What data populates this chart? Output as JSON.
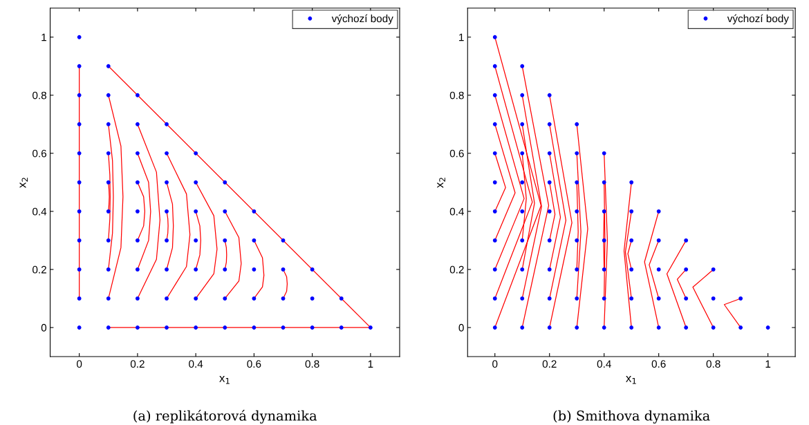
{
  "chart_data": [
    {
      "type": "line",
      "title": "(a) replikátorová dynamika",
      "xlabel": "x$_{1}$",
      "ylabel": "x$_{2}$",
      "xlim": [
        -0.1,
        1.1
      ],
      "ylim": [
        -0.1,
        1.1
      ],
      "xticks": [
        0,
        0.2,
        0.4,
        0.6,
        0.8,
        1
      ],
      "yticks": [
        0,
        0.2,
        0.4,
        0.6,
        0.8,
        1
      ],
      "grid": false,
      "legend": "top right",
      "series": [
        {
          "type": "scatter",
          "name": "výchozí body",
          "color": "#0000ff",
          "marker": "circle",
          "x": [
            0,
            0,
            0,
            0,
            0,
            0,
            0,
            0,
            0,
            0,
            0,
            0.1,
            0.1,
            0.1,
            0.1,
            0.1,
            0.1,
            0.1,
            0.1,
            0.1,
            0.1,
            0.2,
            0.2,
            0.2,
            0.2,
            0.2,
            0.2,
            0.2,
            0.2,
            0.2,
            0.3,
            0.3,
            0.3,
            0.3,
            0.3,
            0.3,
            0.3,
            0.3,
            0.4,
            0.4,
            0.4,
            0.4,
            0.4,
            0.4,
            0.4,
            0.5,
            0.5,
            0.5,
            0.5,
            0.5,
            0.5,
            0.6,
            0.6,
            0.6,
            0.6,
            0.6,
            0.7,
            0.7,
            0.7,
            0.7,
            0.8,
            0.8,
            0.8,
            0.9,
            0.9,
            1
          ],
          "values": [
            0,
            0.1,
            0.2,
            0.3,
            0.4,
            0.5,
            0.6,
            0.7,
            0.8,
            0.9,
            1,
            0,
            0.1,
            0.2,
            0.3,
            0.4,
            0.5,
            0.6,
            0.7,
            0.8,
            0.9,
            0,
            0.1,
            0.2,
            0.3,
            0.4,
            0.5,
            0.6,
            0.7,
            0.8,
            0,
            0.1,
            0.2,
            0.3,
            0.4,
            0.5,
            0.6,
            0.7,
            0,
            0.1,
            0.2,
            0.3,
            0.4,
            0.5,
            0.6,
            0,
            0.1,
            0.2,
            0.3,
            0.4,
            0.5,
            0,
            0.1,
            0.2,
            0.3,
            0.4,
            0,
            0.1,
            0.2,
            0.3,
            0,
            0.1,
            0.2,
            0,
            0.1,
            0
          ]
        },
        {
          "type": "line",
          "color": "#ff0000",
          "x": [
            0,
            0
          ],
          "values": [
            0.9,
            0.1
          ]
        },
        {
          "type": "line",
          "color": "#ff0000",
          "x": [
            0.1,
            1
          ],
          "values": [
            0.9,
            0
          ]
        },
        {
          "type": "line",
          "color": "#ff0000",
          "x": [
            0.1,
            1
          ],
          "values": [
            0,
            0
          ]
        },
        {
          "type": "line",
          "color": "#ff0000",
          "x": [
            0.1,
            0.143,
            0.15,
            0.143,
            0.1
          ],
          "values": [
            0.8,
            0.625,
            0.45,
            0.275,
            0.1
          ]
        },
        {
          "type": "line",
          "color": "#ff0000",
          "x": [
            0.1,
            0.114,
            0.117,
            0.114,
            0.1
          ],
          "values": [
            0.7,
            0.575,
            0.45,
            0.325,
            0.2
          ]
        },
        {
          "type": "line",
          "color": "#ff0000",
          "x": [
            0.1,
            0.105,
            0.106,
            0.105,
            0.1
          ],
          "values": [
            0.6,
            0.525,
            0.45,
            0.375,
            0.3
          ]
        },
        {
          "type": "line",
          "color": "#ff0000",
          "x": [
            0.1,
            0.102,
            0.103,
            0.102,
            0.1
          ],
          "values": [
            0.5,
            0.475,
            0.45,
            0.425,
            0.4
          ]
        },
        {
          "type": "line",
          "color": "#ff0000",
          "x": [
            0.2,
            0.265,
            0.277,
            0.265,
            0.2
          ],
          "values": [
            0.7,
            0.535,
            0.37,
            0.235,
            0.1
          ]
        },
        {
          "type": "line",
          "color": "#ff0000",
          "x": [
            0.2,
            0.238,
            0.245,
            0.238,
            0.2
          ],
          "values": [
            0.6,
            0.5,
            0.4,
            0.3,
            0.2
          ]
        },
        {
          "type": "line",
          "color": "#ff0000",
          "x": [
            0.2,
            0.221,
            0.225,
            0.221,
            0.2
          ],
          "values": [
            0.5,
            0.45,
            0.4,
            0.35,
            0.3
          ]
        },
        {
          "type": "line",
          "color": "#ff0000",
          "x": [
            0.3,
            0.368,
            0.38,
            0.368,
            0.3
          ],
          "values": [
            0.6,
            0.46,
            0.32,
            0.21,
            0.1
          ]
        },
        {
          "type": "line",
          "color": "#ff0000",
          "x": [
            0.3,
            0.32,
            0.323,
            0.32,
            0.3
          ],
          "values": [
            0.5,
            0.425,
            0.35,
            0.275,
            0.2
          ]
        },
        {
          "type": "line",
          "color": "#ff0000",
          "x": [
            0.3,
            0.304,
            0.305,
            0.304,
            0.3
          ],
          "values": [
            0.4,
            0.375,
            0.35,
            0.325,
            0.3
          ]
        },
        {
          "type": "line",
          "color": "#ff0000",
          "x": [
            0.4,
            0.462,
            0.473,
            0.462,
            0.4
          ],
          "values": [
            0.5,
            0.385,
            0.27,
            0.185,
            0.1
          ]
        },
        {
          "type": "line",
          "color": "#ff0000",
          "x": [
            0.4,
            0.414,
            0.417,
            0.414,
            0.4
          ],
          "values": [
            0.4,
            0.35,
            0.3,
            0.25,
            0.2
          ]
        },
        {
          "type": "line",
          "color": "#ff0000",
          "x": [
            0.5,
            0.548,
            0.556,
            0.548,
            0.5
          ],
          "values": [
            0.4,
            0.31,
            0.22,
            0.16,
            0.1
          ]
        },
        {
          "type": "line",
          "color": "#ff0000",
          "x": [
            0.5,
            0.505,
            0.506,
            0.505,
            0.5
          ],
          "values": [
            0.3,
            0.275,
            0.25,
            0.225,
            0.2
          ]
        },
        {
          "type": "line",
          "color": "#ff0000",
          "x": [
            0.6,
            0.629,
            0.634,
            0.629,
            0.6
          ],
          "values": [
            0.3,
            0.24,
            0.18,
            0.14,
            0.1
          ]
        },
        {
          "type": "line",
          "color": "#ff0000",
          "x": [
            0.7,
            0.712,
            0.714,
            0.712,
            0.7
          ],
          "values": [
            0.2,
            0.175,
            0.15,
            0.125,
            0.1
          ]
        }
      ]
    },
    {
      "type": "line",
      "title": "(b) Smithova dynamika",
      "xlabel": "x$_{1}$",
      "ylabel": "x$_{2}$",
      "xlim": [
        -0.1,
        1.1
      ],
      "ylim": [
        -0.1,
        1.1
      ],
      "xticks": [
        0,
        0.2,
        0.4,
        0.6,
        0.8,
        1
      ],
      "yticks": [
        0,
        0.2,
        0.4,
        0.6,
        0.8,
        1
      ],
      "grid": false,
      "legend": "top right",
      "series": [
        {
          "type": "scatter",
          "name": "výchozí body",
          "color": "#0000ff",
          "marker": "circle",
          "x": [
            0,
            0,
            0,
            0,
            0,
            0,
            0,
            0,
            0,
            0,
            0,
            0.1,
            0.1,
            0.1,
            0.1,
            0.1,
            0.1,
            0.1,
            0.1,
            0.1,
            0.1,
            0.2,
            0.2,
            0.2,
            0.2,
            0.2,
            0.2,
            0.2,
            0.2,
            0.2,
            0.3,
            0.3,
            0.3,
            0.3,
            0.3,
            0.3,
            0.3,
            0.3,
            0.4,
            0.4,
            0.4,
            0.4,
            0.4,
            0.4,
            0.4,
            0.5,
            0.5,
            0.5,
            0.5,
            0.5,
            0.5,
            0.6,
            0.6,
            0.6,
            0.6,
            0.6,
            0.7,
            0.7,
            0.7,
            0.7,
            0.8,
            0.8,
            0.8,
            0.9,
            0.9,
            1
          ],
          "values": [
            0,
            0.1,
            0.2,
            0.3,
            0.4,
            0.5,
            0.6,
            0.7,
            0.8,
            0.9,
            1,
            0,
            0.1,
            0.2,
            0.3,
            0.4,
            0.5,
            0.6,
            0.7,
            0.8,
            0.9,
            0,
            0.1,
            0.2,
            0.3,
            0.4,
            0.5,
            0.6,
            0.7,
            0.8,
            0,
            0.1,
            0.2,
            0.3,
            0.4,
            0.5,
            0.6,
            0.7,
            0,
            0.1,
            0.2,
            0.3,
            0.4,
            0.5,
            0.6,
            0,
            0.1,
            0.2,
            0.3,
            0.4,
            0.5,
            0,
            0.1,
            0.2,
            0.3,
            0.4,
            0,
            0.1,
            0.2,
            0.3,
            0,
            0.1,
            0.2,
            0,
            0.1,
            0
          ]
        },
        {
          "type": "line",
          "color": "#ff0000",
          "x": [
            0,
            0.169,
            0
          ],
          "values": [
            1,
            0.42,
            0
          ]
        },
        {
          "type": "line",
          "color": "#ff0000",
          "x": [
            0,
            0.137,
            0
          ],
          "values": [
            0.9,
            0.432,
            0.1
          ]
        },
        {
          "type": "line",
          "color": "#ff0000",
          "x": [
            0,
            0.107,
            0
          ],
          "values": [
            0.8,
            0.444,
            0.2
          ]
        },
        {
          "type": "line",
          "color": "#ff0000",
          "x": [
            0,
            0.074,
            0
          ],
          "values": [
            0.7,
            0.464,
            0.3
          ]
        },
        {
          "type": "line",
          "color": "#ff0000",
          "x": [
            0,
            0.039,
            0
          ],
          "values": [
            0.6,
            0.482,
            0.4
          ]
        },
        {
          "type": "line",
          "color": "#ff0000",
          "x": [
            0.1,
            0.197,
            0.1
          ],
          "values": [
            0.9,
            0.42,
            0
          ]
        },
        {
          "type": "line",
          "color": "#ff0000",
          "x": [
            0.1,
            0.171,
            0.1
          ],
          "values": [
            0.8,
            0.416,
            0.1
          ]
        },
        {
          "type": "line",
          "color": "#ff0000",
          "x": [
            0.1,
            0.145,
            0.1
          ],
          "values": [
            0.7,
            0.428,
            0.2
          ]
        },
        {
          "type": "line",
          "color": "#ff0000",
          "x": [
            0.1,
            0.115,
            0.1
          ],
          "values": [
            0.6,
            0.444,
            0.3
          ]
        },
        {
          "type": "line",
          "color": "#ff0000",
          "x": [
            0.2,
            0.282,
            0.2
          ],
          "values": [
            0.8,
            0.361,
            0
          ]
        },
        {
          "type": "line",
          "color": "#ff0000",
          "x": [
            0.2,
            0.26,
            0.2
          ],
          "values": [
            0.7,
            0.369,
            0.1
          ]
        },
        {
          "type": "line",
          "color": "#ff0000",
          "x": [
            0.2,
            0.24,
            0.2
          ],
          "values": [
            0.6,
            0.38,
            0.2
          ]
        },
        {
          "type": "line",
          "color": "#ff0000",
          "x": [
            0.2,
            0.22,
            0.2
          ],
          "values": [
            0.5,
            0.39,
            0.3
          ]
        },
        {
          "type": "line",
          "color": "#ff0000",
          "x": [
            0.3,
            0.34,
            0.3
          ],
          "values": [
            0.7,
            0.34,
            0
          ]
        },
        {
          "type": "line",
          "color": "#ff0000",
          "x": [
            0.3,
            0.315,
            0.3
          ],
          "values": [
            0.6,
            0.33,
            0.1
          ]
        },
        {
          "type": "line",
          "color": "#ff0000",
          "x": [
            0.3,
            0.305,
            0.3
          ],
          "values": [
            0.5,
            0.33,
            0.2
          ]
        },
        {
          "type": "line",
          "color": "#ff0000",
          "x": [
            0.4,
            0.412,
            0.4
          ],
          "values": [
            0.6,
            0.3,
            0
          ]
        },
        {
          "type": "line",
          "color": "#ff0000",
          "x": [
            0.4,
            0.403,
            0.4
          ],
          "values": [
            0.5,
            0.3,
            0.1
          ]
        },
        {
          "type": "line",
          "color": "#ff0000",
          "x": [
            0.4,
            0.398,
            0.4
          ],
          "values": [
            0.4,
            0.3,
            0.2
          ]
        },
        {
          "type": "line",
          "color": "#ff0000",
          "x": [
            0.5,
            0.473,
            0.5
          ],
          "values": [
            0.5,
            0.264,
            0
          ]
        },
        {
          "type": "line",
          "color": "#ff0000",
          "x": [
            0.5,
            0.478,
            0.5
          ],
          "values": [
            0.4,
            0.26,
            0.1
          ]
        },
        {
          "type": "line",
          "color": "#ff0000",
          "x": [
            0.5,
            0.487,
            0.5
          ],
          "values": [
            0.3,
            0.254,
            0.2
          ]
        },
        {
          "type": "line",
          "color": "#ff0000",
          "x": [
            0.6,
            0.548,
            0.6
          ],
          "values": [
            0.4,
            0.226,
            0
          ]
        },
        {
          "type": "line",
          "color": "#ff0000",
          "x": [
            0.6,
            0.565,
            0.6
          ],
          "values": [
            0.3,
            0.216,
            0.1
          ]
        },
        {
          "type": "line",
          "color": "#ff0000",
          "x": [
            0.7,
            0.63,
            0.7
          ],
          "values": [
            0.3,
            0.185,
            0
          ]
        },
        {
          "type": "line",
          "color": "#ff0000",
          "x": [
            0.7,
            0.668,
            0.7
          ],
          "values": [
            0.2,
            0.166,
            0.1
          ]
        },
        {
          "type": "line",
          "color": "#ff0000",
          "x": [
            0.8,
            0.725,
            0.8
          ],
          "values": [
            0.2,
            0.139,
            0
          ]
        },
        {
          "type": "line",
          "color": "#ff0000",
          "x": [
            0.9,
            0.84,
            0.9
          ],
          "values": [
            0.1,
            0.079,
            0
          ]
        }
      ]
    }
  ]
}
